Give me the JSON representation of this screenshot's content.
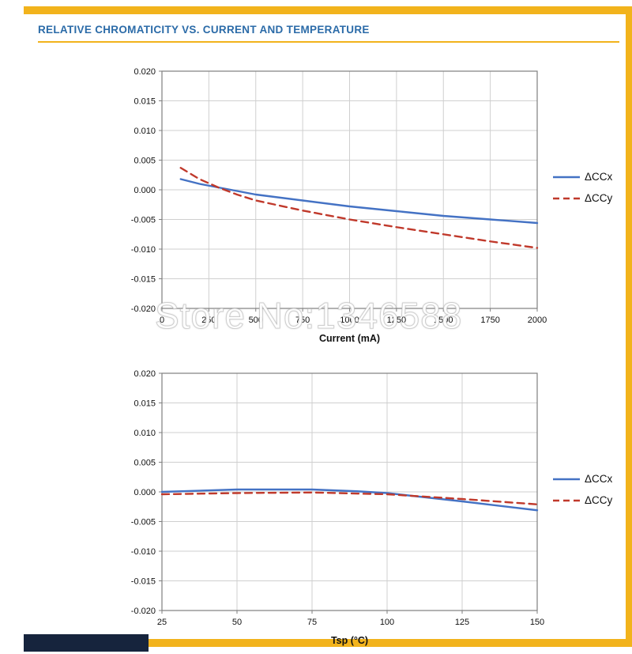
{
  "page": {
    "title": "RELATIVE CHROMATICITY VS. CURRENT AND TEMPERATURE",
    "watermark": "Store No:1346588",
    "accent_gold": "#F2B31C",
    "title_blue": "#2B6BA8",
    "navy_color": "#16243D"
  },
  "chart_data": [
    {
      "type": "line",
      "title": "",
      "xlabel": "Current (mA)",
      "ylabel": "",
      "xlim": [
        0,
        2000
      ],
      "ylim": [
        -0.02,
        0.02
      ],
      "xticks": [
        0,
        250,
        500,
        750,
        1000,
        1250,
        1500,
        1750,
        2000
      ],
      "yticks": [
        0.02,
        0.015,
        0.01,
        0.005,
        0.0,
        -0.005,
        -0.01,
        -0.015,
        -0.02
      ],
      "grid": true,
      "legend_position": "right",
      "series": [
        {
          "name": "ΔCCx",
          "color": "#4472C4",
          "dash": "solid",
          "x": [
            100,
            200,
            300,
            400,
            500,
            750,
            1000,
            1250,
            1500,
            1750,
            2000
          ],
          "y": [
            0.0018,
            0.001,
            0.0004,
            -0.0002,
            -0.0008,
            -0.0018,
            -0.0028,
            -0.0036,
            -0.0044,
            -0.005,
            -0.0056
          ]
        },
        {
          "name": "ΔCCy",
          "color": "#C0392B",
          "dash": "dashed",
          "x": [
            100,
            200,
            300,
            400,
            500,
            750,
            1000,
            1250,
            1500,
            1750,
            2000
          ],
          "y": [
            0.0037,
            0.0018,
            0.0004,
            -0.0008,
            -0.0018,
            -0.0035,
            -0.005,
            -0.0063,
            -0.0075,
            -0.0087,
            -0.0098
          ]
        }
      ]
    },
    {
      "type": "line",
      "title": "",
      "xlabel": "Tsp (°C)",
      "ylabel": "",
      "xlim": [
        25,
        150
      ],
      "ylim": [
        -0.02,
        0.02
      ],
      "xticks": [
        25,
        50,
        75,
        100,
        125,
        150
      ],
      "yticks": [
        0.02,
        0.015,
        0.01,
        0.005,
        0.0,
        -0.005,
        -0.01,
        -0.015,
        -0.02
      ],
      "grid": true,
      "legend_position": "right",
      "series": [
        {
          "name": "ΔCCx",
          "color": "#4472C4",
          "dash": "solid",
          "x": [
            25,
            50,
            75,
            90,
            100,
            125,
            150
          ],
          "y": [
            0.0,
            0.0004,
            0.0004,
            0.0001,
            -0.0002,
            -0.0016,
            -0.0031
          ]
        },
        {
          "name": "ΔCCy",
          "color": "#C0392B",
          "dash": "dashed",
          "x": [
            25,
            50,
            75,
            100,
            125,
            150
          ],
          "y": [
            -0.0004,
            -0.0002,
            -0.0001,
            -0.0004,
            -0.0012,
            -0.0021
          ]
        }
      ]
    }
  ]
}
